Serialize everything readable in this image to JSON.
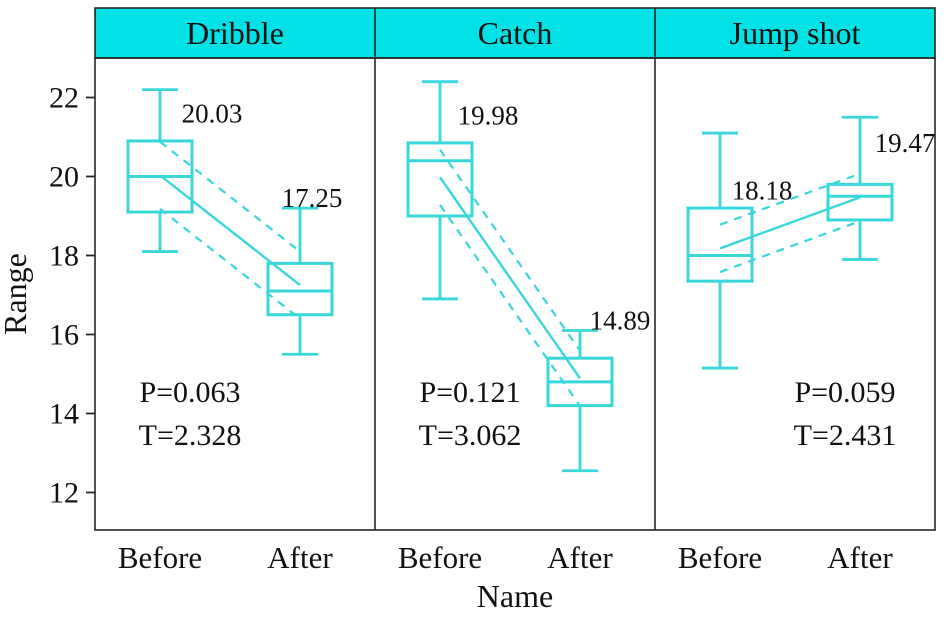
{
  "figure": {
    "background": "#ffffff",
    "accent_color": "#38d7da",
    "header_fill": "#00e2e5",
    "frame_color": "#262626",
    "text_color": "#111111"
  },
  "chart_data": {
    "type": "boxplot",
    "title": "",
    "xlabel": "Name",
    "ylabel": "Range",
    "ylim": [
      11.05,
      23.0
    ],
    "yticks": [
      12,
      14,
      16,
      18,
      20,
      22
    ],
    "categories": [
      "Before",
      "After"
    ],
    "grid": false,
    "legend": "none",
    "annotation_y": [
      14.55,
      13.45
    ],
    "panels": [
      {
        "label": "Dribble",
        "p_label": "P=0.063",
        "t_label": "T=2.328",
        "annot_dx": 95,
        "band_offset": 0.85,
        "boxes": [
          {
            "category": "Before",
            "whisker_low": 18.1,
            "q1": 19.1,
            "median": 20.0,
            "q3": 20.9,
            "whisker_high": 22.2,
            "mean": 20.03,
            "mean_label": "20.03",
            "label_dx": 52,
            "label_y": 21.6
          },
          {
            "category": "After",
            "whisker_low": 15.5,
            "q1": 16.5,
            "median": 17.1,
            "q3": 17.8,
            "whisker_high": 19.2,
            "mean": 17.25,
            "mean_label": "17.25",
            "label_dx": 12,
            "label_y": 19.45
          }
        ]
      },
      {
        "label": "Catch",
        "p_label": "P=0.121",
        "t_label": "T=3.062",
        "annot_dx": 95,
        "band_offset": 0.7,
        "boxes": [
          {
            "category": "Before",
            "whisker_low": 16.9,
            "q1": 19.0,
            "median": 20.4,
            "q3": 20.85,
            "whisker_high": 22.4,
            "mean": 19.98,
            "mean_label": "19.98",
            "label_dx": 48,
            "label_y": 21.55
          },
          {
            "category": "After",
            "whisker_low": 12.55,
            "q1": 14.2,
            "median": 14.8,
            "q3": 15.4,
            "whisker_high": 16.1,
            "mean": 14.89,
            "mean_label": "14.89",
            "label_dx": 40,
            "label_y": 16.35
          }
        ]
      },
      {
        "label": "Jump shot",
        "p_label": "P=0.059",
        "t_label": "T=2.431",
        "annot_dx": 190,
        "band_offset": 0.6,
        "boxes": [
          {
            "category": "Before",
            "whisker_low": 15.15,
            "q1": 17.35,
            "median": 18.0,
            "q3": 19.2,
            "whisker_high": 21.1,
            "mean": 18.18,
            "mean_label": "18.18",
            "label_dx": 42,
            "label_y": 19.65
          },
          {
            "category": "After",
            "whisker_low": 17.9,
            "q1": 18.9,
            "median": 19.5,
            "q3": 19.8,
            "whisker_high": 21.5,
            "mean": 19.47,
            "mean_label": "19.47",
            "label_dx": 45,
            "label_y": 20.85
          }
        ]
      }
    ]
  }
}
